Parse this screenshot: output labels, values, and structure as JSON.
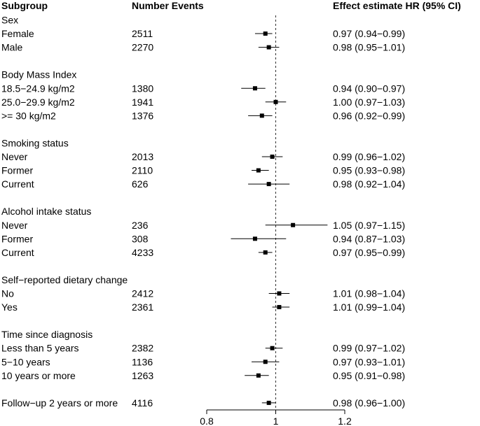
{
  "headers": {
    "subgroup": "Subgroup",
    "events": "Number Events",
    "effect": "Effect estimate HR (95% CI)"
  },
  "chart_data": {
    "type": "forest",
    "x_axis": {
      "ticks": [
        "0.8",
        "1",
        "1.2"
      ],
      "xlim": [
        0.8,
        1.2
      ],
      "reference_line": 1.0
    },
    "rows": [
      {
        "kind": "group",
        "label": "Sex"
      },
      {
        "kind": "item",
        "label": "Female",
        "events": "2511",
        "hr": 0.97,
        "lo": 0.94,
        "hi": 0.99,
        "text": "0.97 (0.94−0.99)"
      },
      {
        "kind": "item",
        "label": "Male",
        "events": "2270",
        "hr": 0.98,
        "lo": 0.95,
        "hi": 1.01,
        "text": "0.98 (0.95−1.01)"
      },
      {
        "kind": "spacer"
      },
      {
        "kind": "group",
        "label": "Body Mass Index"
      },
      {
        "kind": "item",
        "label": "18.5−24.9 kg/m2",
        "events": "1380",
        "hr": 0.94,
        "lo": 0.9,
        "hi": 0.97,
        "text": "0.94 (0.90−0.97)"
      },
      {
        "kind": "item",
        "label": "25.0−29.9 kg/m2",
        "events": "1941",
        "hr": 1.0,
        "lo": 0.97,
        "hi": 1.03,
        "text": "1.00 (0.97−1.03)"
      },
      {
        "kind": "item",
        "label": ">= 30 kg/m2",
        "events": "1376",
        "hr": 0.96,
        "lo": 0.92,
        "hi": 0.99,
        "text": "0.96 (0.92−0.99)"
      },
      {
        "kind": "spacer"
      },
      {
        "kind": "group",
        "label": "Smoking status"
      },
      {
        "kind": "item",
        "label": "Never",
        "events": "2013",
        "hr": 0.99,
        "lo": 0.96,
        "hi": 1.02,
        "text": "0.99 (0.96−1.02)"
      },
      {
        "kind": "item",
        "label": "Former",
        "events": "2110",
        "hr": 0.95,
        "lo": 0.93,
        "hi": 0.98,
        "text": "0.95 (0.93−0.98)"
      },
      {
        "kind": "item",
        "label": "Current",
        "events": "626",
        "hr": 0.98,
        "lo": 0.92,
        "hi": 1.04,
        "text": "0.98 (0.92−1.04)"
      },
      {
        "kind": "spacer"
      },
      {
        "kind": "group",
        "label": "Alcohol intake status"
      },
      {
        "kind": "item",
        "label": "Never",
        "events": "236",
        "hr": 1.05,
        "lo": 0.97,
        "hi": 1.15,
        "text": "1.05 (0.97−1.15)"
      },
      {
        "kind": "item",
        "label": "Former",
        "events": "308",
        "hr": 0.94,
        "lo": 0.87,
        "hi": 1.03,
        "text": "0.94 (0.87−1.03)"
      },
      {
        "kind": "item",
        "label": "Current",
        "events": "4233",
        "hr": 0.97,
        "lo": 0.95,
        "hi": 0.99,
        "text": "0.97 (0.95−0.99)"
      },
      {
        "kind": "spacer"
      },
      {
        "kind": "group",
        "label": "Self−reported dietary change"
      },
      {
        "kind": "item",
        "label": "No",
        "events": "2412",
        "hr": 1.01,
        "lo": 0.98,
        "hi": 1.04,
        "text": "1.01 (0.98−1.04)"
      },
      {
        "kind": "item",
        "label": "Yes",
        "events": "2361",
        "hr": 1.01,
        "lo": 0.99,
        "hi": 1.04,
        "text": "1.01 (0.99−1.04)"
      },
      {
        "kind": "spacer"
      },
      {
        "kind": "group",
        "label": "Time since diagnosis"
      },
      {
        "kind": "item",
        "label": "Less than 5 years",
        "events": "2382",
        "hr": 0.99,
        "lo": 0.97,
        "hi": 1.02,
        "text": "0.99 (0.97−1.02)"
      },
      {
        "kind": "item",
        "label": "5−10 years",
        "events": "1136",
        "hr": 0.97,
        "lo": 0.93,
        "hi": 1.01,
        "text": "0.97 (0.93−1.01)"
      },
      {
        "kind": "item",
        "label": "10 years or more",
        "events": "1263",
        "hr": 0.95,
        "lo": 0.91,
        "hi": 0.98,
        "text": "0.95 (0.91−0.98)"
      },
      {
        "kind": "spacer"
      },
      {
        "kind": "item",
        "label": "Follow−up 2 years or more",
        "events": "4116",
        "hr": 0.98,
        "lo": 0.96,
        "hi": 1.0,
        "text": "0.98 (0.96−1.00)"
      }
    ]
  }
}
